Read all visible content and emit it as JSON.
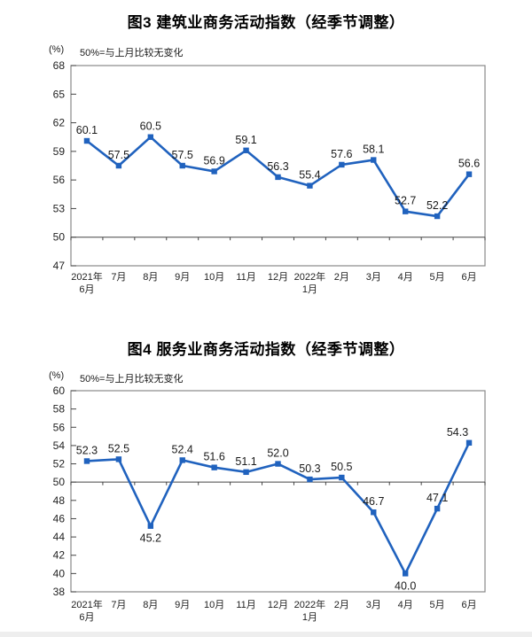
{
  "accent_color": "#2062BE",
  "chart_data": [
    {
      "type": "line",
      "title": "图3 建筑业商务活动指数（经季节调整）",
      "unit_label": "(%)",
      "subtitle": "50%=与上月比较无变化",
      "categories": [
        "2021年\n6月",
        "7月",
        "8月",
        "9月",
        "10月",
        "11月",
        "12月",
        "2022年\n1月",
        "2月",
        "3月",
        "4月",
        "5月",
        "6月"
      ],
      "values": [
        60.1,
        57.5,
        60.5,
        57.5,
        56.9,
        59.1,
        56.3,
        55.4,
        57.6,
        58.1,
        52.7,
        52.2,
        56.6
      ],
      "ylim": [
        47,
        68
      ],
      "ytick_step": 3,
      "reference_line": 50,
      "line_color": "#2062BE",
      "marker": "square",
      "grid": false,
      "legend": "none",
      "labels_below_indices": []
    },
    {
      "type": "line",
      "title": "图4 服务业商务活动指数（经季节调整）",
      "unit_label": "(%)",
      "subtitle": "50%=与上月比较无变化",
      "categories": [
        "2021年\n6月",
        "7月",
        "8月",
        "9月",
        "10月",
        "11月",
        "12月",
        "2022年\n1月",
        "2月",
        "3月",
        "4月",
        "5月",
        "6月"
      ],
      "values": [
        52.3,
        52.5,
        45.2,
        52.4,
        51.6,
        51.1,
        52.0,
        50.3,
        50.5,
        46.7,
        40.0,
        47.1,
        54.3
      ],
      "ylim": [
        38,
        60
      ],
      "ytick_step": 2,
      "reference_line": 50,
      "line_color": "#2062BE",
      "marker": "square",
      "grid": false,
      "legend": "none",
      "labels_below_indices": [
        2,
        10
      ]
    }
  ]
}
